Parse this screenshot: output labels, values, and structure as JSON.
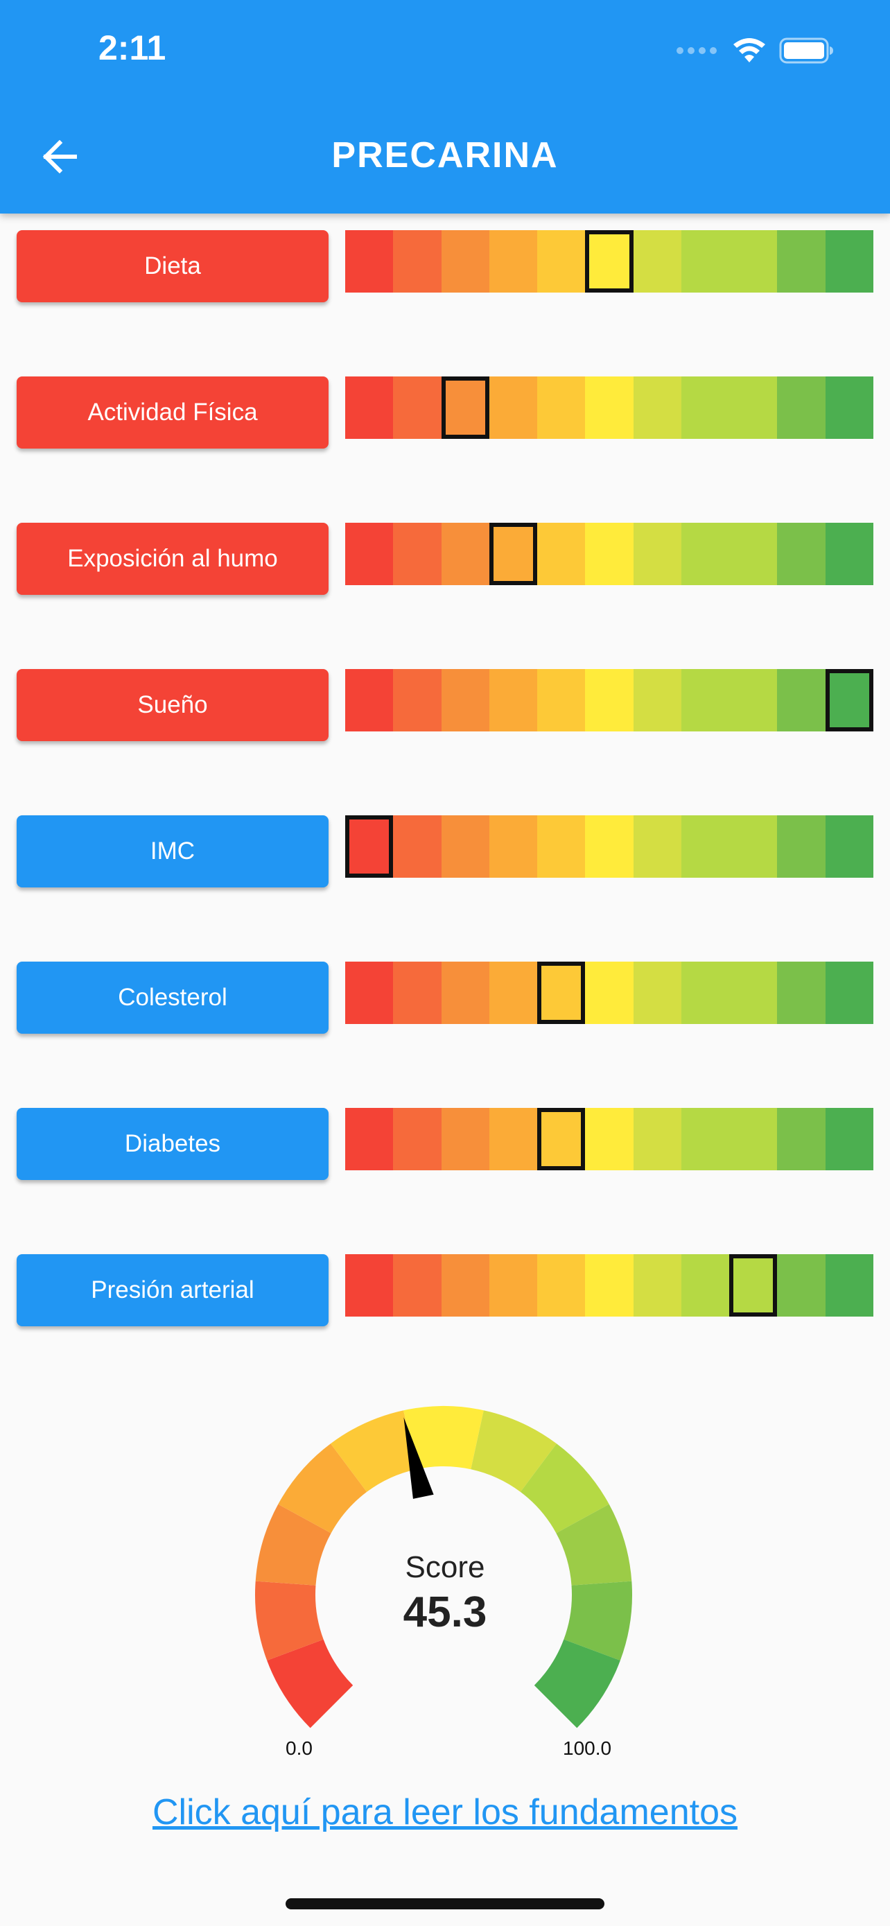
{
  "status_bar": {
    "time": "2:11"
  },
  "app_bar": {
    "title": "PRECARINA",
    "back_icon": "arrow-left-icon"
  },
  "scale_colors": [
    "#f44336",
    "#f66a3b",
    "#f78f3a",
    "#fbab37",
    "#fdc937",
    "#ffeb3b",
    "#d4de43",
    "#b5d944",
    "#7bc04a",
    "#4caf50"
  ],
  "factors": [
    {
      "label": "Dieta",
      "group": "red",
      "level": 6
    },
    {
      "label": "Actividad Física",
      "group": "red",
      "level": 3
    },
    {
      "label": "Exposición al humo",
      "group": "red",
      "level": 4
    },
    {
      "label": "Sueño",
      "group": "red",
      "level": 11
    },
    {
      "label": "IMC",
      "group": "blue",
      "level": 1
    },
    {
      "label": "Colesterol",
      "group": "blue",
      "level": 5
    },
    {
      "label": "Diabetes",
      "group": "blue",
      "level": 5
    },
    {
      "label": "Presión arterial",
      "group": "blue",
      "level": 9
    }
  ],
  "score": {
    "label": "Score",
    "value": "45.3",
    "numeric": 45.3,
    "min": "0.0",
    "max": "100.0"
  },
  "link": {
    "text": "Click aquí para leer los fundamentos"
  }
}
